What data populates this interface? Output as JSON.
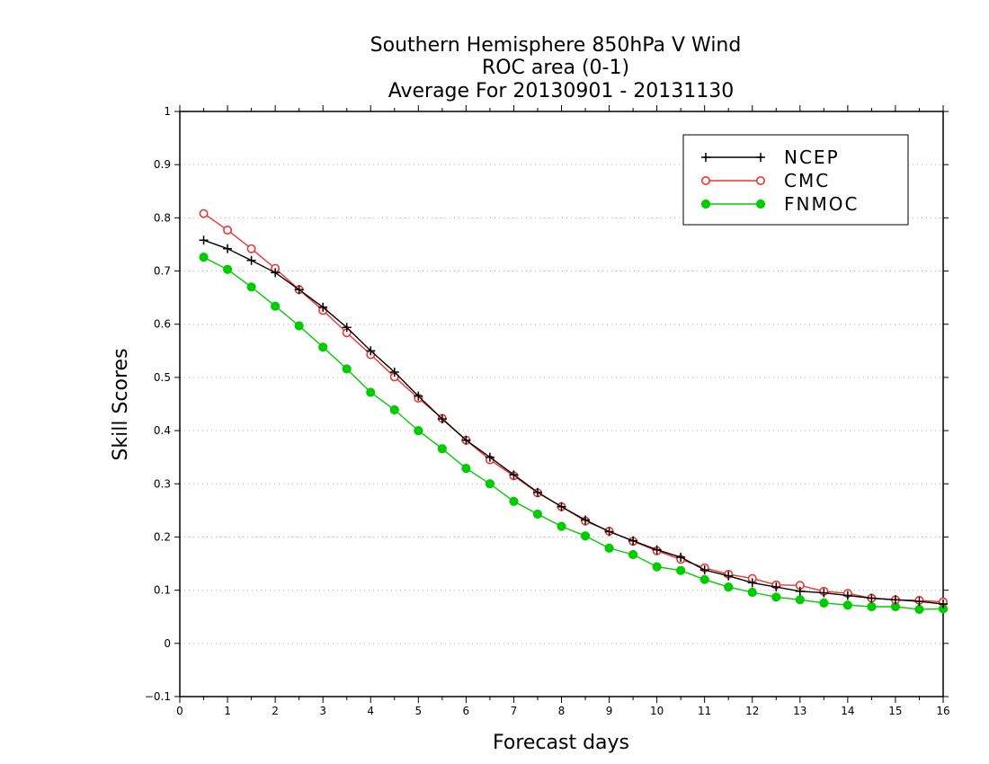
{
  "chart_data": {
    "type": "line",
    "title": [
      "Southern Hemisphere 850hPa V Wind",
      "ROC area (0-1)",
      "Average For 20130901 - 20131130"
    ],
    "xlabel": "Forecast days",
    "ylabel": "Skill Scores",
    "xlim": [
      0,
      16
    ],
    "ylim": [
      -0.1,
      1
    ],
    "xticks": [
      "0",
      "1",
      "2",
      "3",
      "4",
      "5",
      "6",
      "7",
      "8",
      "9",
      "10",
      "11",
      "12",
      "13",
      "14",
      "15",
      "16"
    ],
    "yticks": [
      "−0.1",
      "0",
      "0.1",
      "0.2",
      "0.3",
      "0.4",
      "0.5",
      "0.6",
      "0.7",
      "0.8",
      "0.9",
      "1"
    ],
    "grid": true,
    "legend_position": "top-right",
    "x": [
      0.5,
      1,
      1.5,
      2,
      2.5,
      3,
      3.5,
      4,
      4.5,
      5,
      5.5,
      6,
      6.5,
      7,
      7.5,
      8,
      8.5,
      9,
      9.5,
      10,
      10.5,
      11,
      11.5,
      12,
      12.5,
      13,
      13.5,
      14,
      14.5,
      15,
      15.5,
      16
    ],
    "series": [
      {
        "name": "NCEP",
        "color": "#000000",
        "marker": "plus",
        "values": [
          0.758,
          0.742,
          0.72,
          0.697,
          0.665,
          0.632,
          0.594,
          0.55,
          0.51,
          0.465,
          0.422,
          0.382,
          0.35,
          0.317,
          0.284,
          0.257,
          0.232,
          0.21,
          0.193,
          0.176,
          0.162,
          0.138,
          0.127,
          0.114,
          0.106,
          0.098,
          0.095,
          0.09,
          0.085,
          0.082,
          0.079,
          0.074
        ]
      },
      {
        "name": "CMC",
        "color": "#ee3333",
        "marker": "open-circle",
        "values": [
          0.808,
          0.777,
          0.742,
          0.705,
          0.665,
          0.626,
          0.584,
          0.543,
          0.501,
          0.461,
          0.423,
          0.382,
          0.345,
          0.315,
          0.283,
          0.257,
          0.23,
          0.211,
          0.192,
          0.174,
          0.158,
          0.142,
          0.13,
          0.122,
          0.11,
          0.109,
          0.098,
          0.094,
          0.085,
          0.082,
          0.081,
          0.078
        ]
      },
      {
        "name": "FNMOC",
        "color": "#00cc00",
        "marker": "filled-circle",
        "values": [
          0.726,
          0.703,
          0.67,
          0.634,
          0.597,
          0.557,
          0.516,
          0.472,
          0.439,
          0.4,
          0.366,
          0.329,
          0.3,
          0.267,
          0.243,
          0.22,
          0.202,
          0.179,
          0.167,
          0.144,
          0.137,
          0.12,
          0.106,
          0.096,
          0.087,
          0.082,
          0.076,
          0.072,
          0.069,
          0.069,
          0.064,
          0.065
        ]
      }
    ]
  }
}
